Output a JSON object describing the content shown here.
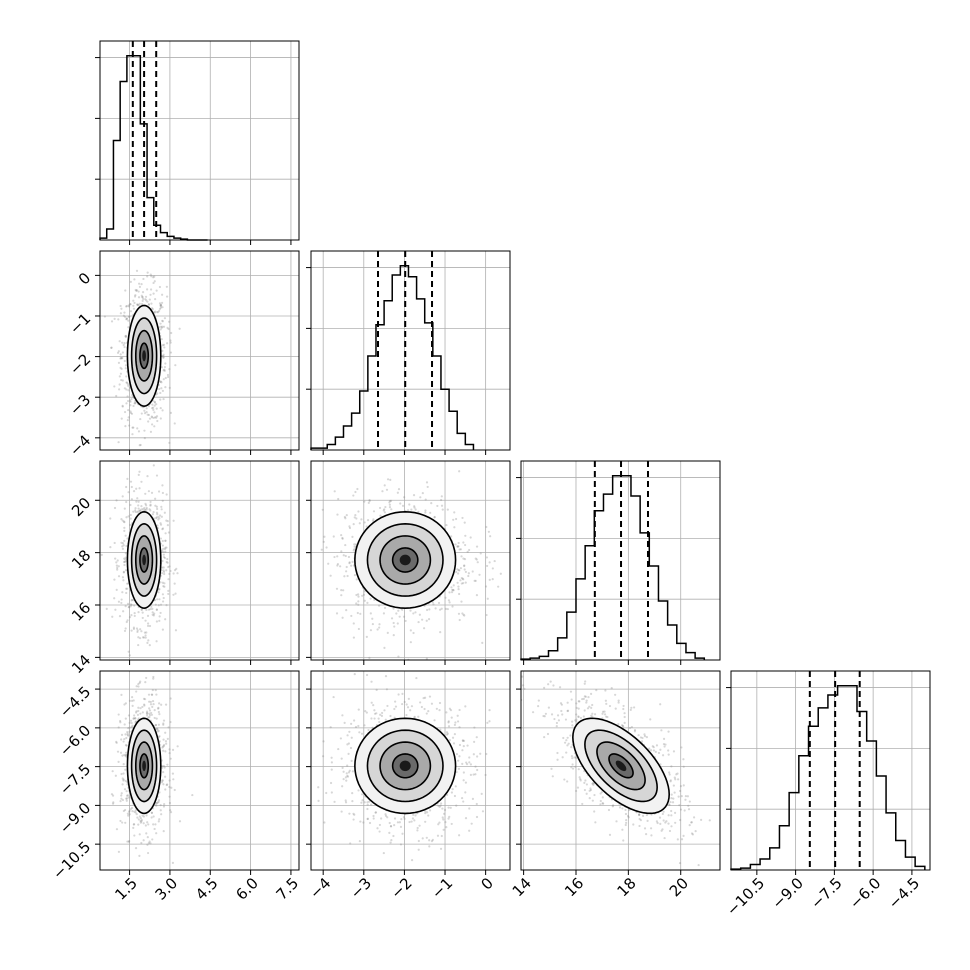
{
  "chart_data": {
    "type": "corner",
    "n_params": 4,
    "parameters": [
      {
        "label": "",
        "range": [
          0.4,
          7.8
        ],
        "ticks": [
          1.5,
          3.0,
          4.5,
          6.0,
          7.5
        ],
        "tick_labels": [
          "1.5",
          "3.0",
          "4.5",
          "6.0",
          "7.5"
        ],
        "hist_bin_edges": [
          0.4,
          0.65,
          0.9,
          1.15,
          1.4,
          1.65,
          1.9,
          2.15,
          2.4,
          2.65,
          2.9,
          3.15,
          3.4,
          3.65,
          3.9,
          4.15,
          4.4
        ],
        "hist_counts": [
          1,
          6,
          54,
          86,
          100,
          100,
          63,
          23,
          8,
          4,
          2,
          1,
          0.5,
          0,
          0,
          0
        ],
        "quantiles": [
          1.62,
          2.04,
          2.49
        ]
      },
      {
        "label": "",
        "range": [
          -4.3,
          0.6
        ],
        "ticks": [
          -4,
          -3,
          -2,
          -1,
          0
        ],
        "tick_labels": [
          "−4",
          "−3",
          "−2",
          "−1",
          "0"
        ],
        "hist_bin_edges": [
          -4.3,
          -4.1,
          -3.9,
          -3.7,
          -3.5,
          -3.3,
          -3.1,
          -2.9,
          -2.7,
          -2.5,
          -2.3,
          -2.1,
          -1.9,
          -1.7,
          -1.5,
          -1.3,
          -1.1,
          -0.9,
          -0.7,
          -0.5,
          -0.3
        ],
        "hist_counts": [
          1,
          1,
          3,
          7,
          13,
          20,
          32,
          51,
          68,
          81,
          95,
          100,
          94,
          82,
          69,
          51,
          33,
          21,
          9,
          3
        ],
        "quantiles": [
          -2.65,
          -1.98,
          -1.32
        ]
      },
      {
        "label": "",
        "range": [
          13.9,
          21.5
        ],
        "ticks": [
          14,
          16,
          18,
          20
        ],
        "tick_labels": [
          "14",
          "16",
          "18",
          "20"
        ],
        "hist_bin_edges": [
          13.9,
          14.25,
          14.6,
          14.95,
          15.3,
          15.65,
          16.0,
          16.35,
          16.7,
          17.05,
          17.4,
          17.75,
          18.1,
          18.45,
          18.8,
          19.15,
          19.5,
          19.85,
          20.2,
          20.55,
          20.9
        ],
        "hist_counts": [
          0.5,
          1,
          2,
          5,
          12,
          26,
          44,
          62,
          81,
          90,
          100,
          100,
          89,
          69,
          51,
          32,
          19,
          9,
          4,
          1
        ],
        "quantiles": [
          16.72,
          17.72,
          18.75
        ]
      },
      {
        "label": "",
        "range": [
          -11.5,
          -3.8
        ],
        "ticks": [
          -10.5,
          -9.0,
          -7.5,
          -6.0,
          -4.5
        ],
        "tick_labels": [
          "−10.5",
          "−9.0",
          "−7.5",
          "−6.0",
          "−4.5"
        ],
        "hist_bin_edges": [
          -11.5,
          -11.125,
          -10.75,
          -10.375,
          -10.0,
          -9.625,
          -9.25,
          -8.875,
          -8.5,
          -8.125,
          -7.75,
          -7.375,
          -7.0,
          -6.625,
          -6.25,
          -5.875,
          -5.5,
          -5.125,
          -4.75,
          -4.375,
          -4.0
        ],
        "hist_counts": [
          0.5,
          1,
          3,
          6,
          12,
          24,
          42,
          62,
          78,
          88,
          95,
          100,
          100,
          86,
          70,
          51,
          31,
          16,
          7,
          2
        ],
        "quantiles": [
          -8.45,
          -7.47,
          -6.52
        ]
      }
    ],
    "pairs": [
      {
        "row": 1,
        "col": 0,
        "mean": [
          2.04,
          -1.98
        ],
        "sd": [
          0.31,
          0.62
        ],
        "corr": 0
      },
      {
        "row": 2,
        "col": 0,
        "mean": [
          2.04,
          17.72
        ],
        "sd": [
          0.31,
          0.92
        ],
        "corr": 0
      },
      {
        "row": 2,
        "col": 1,
        "mean": [
          -1.98,
          17.72
        ],
        "sd": [
          0.62,
          0.92
        ],
        "corr": 0
      },
      {
        "row": 3,
        "col": 0,
        "mean": [
          2.04,
          -7.47
        ],
        "sd": [
          0.31,
          0.92
        ],
        "corr": 0
      },
      {
        "row": 3,
        "col": 1,
        "mean": [
          -1.98,
          -7.47
        ],
        "sd": [
          0.62,
          0.92
        ],
        "corr": 0
      },
      {
        "row": 3,
        "col": 2,
        "mean": [
          17.72,
          -7.47
        ],
        "sd": [
          0.92,
          0.92
        ],
        "corr": -0.6
      }
    ],
    "contour_levels": [
      0.5,
      1.0,
      1.5,
      2.0
    ],
    "grid": true,
    "colors": {
      "contour": "#000000",
      "samples": "#8c8c8c",
      "grid": "#b0b0b0"
    }
  }
}
